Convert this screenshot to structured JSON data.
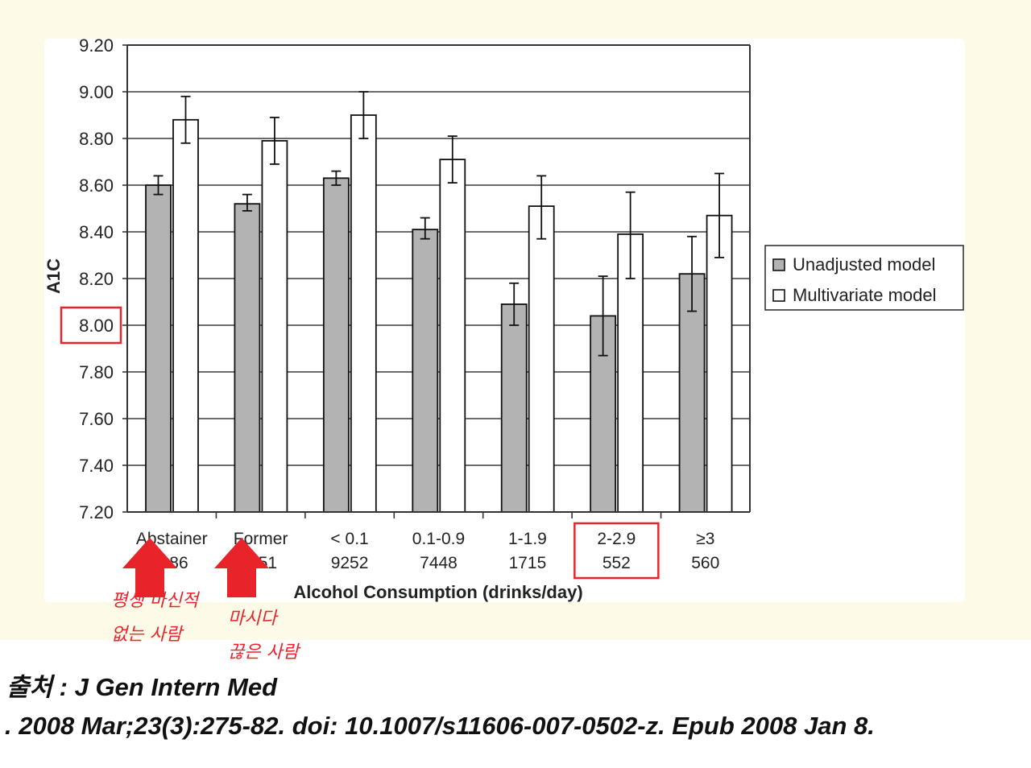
{
  "chart_data": {
    "type": "bar",
    "ylabel": "A1C",
    "xlabel": "Alcohol Consumption (drinks/day)",
    "ylim": [
      7.2,
      9.2
    ],
    "yticks": [
      "7.20",
      "7.40",
      "7.60",
      "7.80",
      "8.00",
      "8.20",
      "8.40",
      "8.60",
      "8.80",
      "9.00",
      "9.20"
    ],
    "grid": true,
    "legend_position": "right",
    "categories": [
      "Abstainer",
      "Former",
      "< 0.1",
      "0.1-0.9",
      "1-1.9",
      "2-2.9",
      "≥3"
    ],
    "category_counts": [
      "...86",
      "...51",
      "9252",
      "7448",
      "1715",
      "552",
      "560"
    ],
    "series": [
      {
        "name": "Unadjusted model",
        "color": "#b3b3b3",
        "values": [
          8.6,
          8.52,
          8.63,
          8.41,
          8.09,
          8.04,
          8.22
        ],
        "err_low": [
          8.56,
          8.49,
          8.6,
          8.37,
          8.0,
          7.87,
          8.06
        ],
        "err_high": [
          8.64,
          8.56,
          8.66,
          8.46,
          8.18,
          8.21,
          8.38
        ]
      },
      {
        "name": "Multivariate model",
        "color": "#ffffff",
        "values": [
          8.88,
          8.79,
          8.9,
          8.71,
          8.51,
          8.39,
          8.47
        ],
        "err_low": [
          8.78,
          8.69,
          8.8,
          8.61,
          8.37,
          8.2,
          8.29
        ],
        "err_high": [
          8.98,
          8.89,
          9.0,
          8.81,
          8.64,
          8.57,
          8.65
        ]
      }
    ],
    "highlighted_tick": "8.00",
    "highlighted_category": "2-2.9"
  },
  "annotations": {
    "abstainer_note_line1": "평생 마신적",
    "abstainer_note_line2": "없는 사람",
    "former_note_line1": "마시다",
    "former_note_line2": "끊은 사람",
    "arrow_color": "#e8232a",
    "box_color": "#e8232a"
  },
  "citation": {
    "line1": "출처 : J Gen Intern Med",
    "line2": ". 2008 Mar;23(3):275-82. doi: 10.1007/s11606-007-0502-z. Epub 2008 Jan 8."
  }
}
